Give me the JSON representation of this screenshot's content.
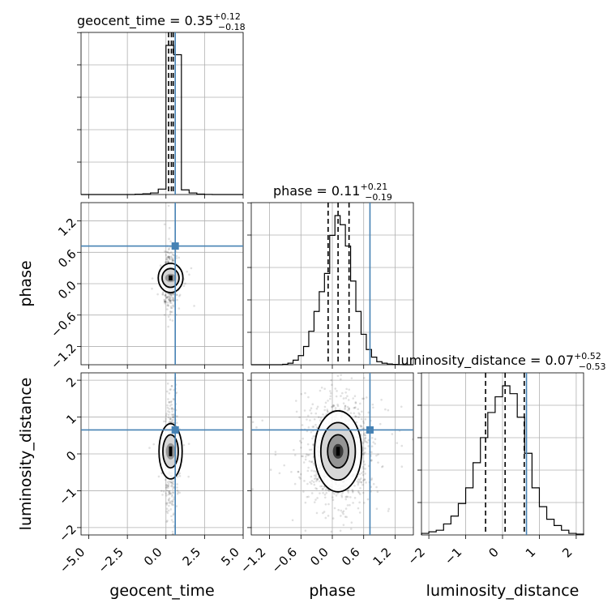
{
  "chart_data": {
    "type": "corner",
    "colors": {
      "truth": "#4682b4",
      "histogram": "#000000",
      "grid": "#b0b0b0"
    },
    "grid": true,
    "parameters": [
      {
        "name": "geocent_time",
        "label": "geocent_time",
        "title_name": "geocent_time = ",
        "median": "0.35",
        "plus": "+0.12",
        "minus": "−0.18",
        "range": [
          -5.5,
          5.0
        ],
        "ticks": [
          -5.0,
          -2.5,
          0.0,
          2.5,
          5.0
        ],
        "tick_labels": [
          "−5.0",
          "−2.5",
          "0.0",
          "2.5",
          "5.0"
        ],
        "truth": 0.6,
        "quantiles": [
          0.17,
          0.35,
          0.47
        ],
        "hist_bins": [
          -5.5,
          -5.0,
          -4.5,
          -4.0,
          -3.5,
          -3.0,
          -2.5,
          -2.0,
          -1.5,
          -1.0,
          -0.5,
          0.0,
          0.5,
          1.0,
          1.5,
          2.0,
          2.5,
          3.0,
          3.5,
          4.0,
          4.5,
          5.0
        ],
        "hist_values": [
          0,
          0,
          0,
          0,
          0,
          0,
          0,
          0.2,
          0.5,
          1.0,
          3.5,
          96,
          90,
          3.0,
          1.0,
          0.3,
          0.1,
          0,
          0,
          0,
          0
        ]
      },
      {
        "name": "phase",
        "label": "phase",
        "title_name": "phase = ",
        "median": "0.11",
        "plus": "+0.21",
        "minus": "−0.19",
        "range": [
          -1.55,
          1.55
        ],
        "ticks": [
          -1.2,
          -0.6,
          0.0,
          0.6,
          1.2
        ],
        "tick_labels": [
          "−1.2",
          "−0.6",
          "0.0",
          "0.6",
          "1.2"
        ],
        "truth": 0.72,
        "quantiles": [
          -0.08,
          0.11,
          0.32
        ],
        "hist_bins": [
          -1.55,
          -1.45,
          -1.35,
          -1.25,
          -1.15,
          -1.05,
          -0.95,
          -0.85,
          -0.75,
          -0.65,
          -0.55,
          -0.45,
          -0.35,
          -0.25,
          -0.15,
          -0.05,
          0.05,
          0.15,
          0.25,
          0.35,
          0.45,
          0.55,
          0.65,
          0.75,
          0.85,
          0.95,
          1.05,
          1.15,
          1.25,
          1.35,
          1.45,
          1.55
        ],
        "hist_values": [
          0,
          0,
          0,
          0,
          0,
          0,
          0.3,
          1,
          3,
          6,
          12,
          22,
          35,
          48,
          60,
          85,
          98,
          92,
          78,
          55,
          35,
          20,
          10,
          5,
          2,
          1,
          0.5,
          0.2,
          0.1,
          0,
          0
        ]
      },
      {
        "name": "luminosity_distance",
        "label": "luminosity_distance",
        "title_name": "luminosity_distance = ",
        "median": "0.07",
        "plus": "+0.52",
        "minus": "−0.53",
        "range": [
          -2.2,
          2.2
        ],
        "ticks": [
          -2,
          -1,
          0,
          1,
          2
        ],
        "tick_labels": [
          "−2",
          "−1",
          "0",
          "1",
          "2"
        ],
        "truth": 0.65,
        "quantiles": [
          -0.46,
          0.07,
          0.59
        ],
        "hist_bins": [
          -2.2,
          -2.0,
          -1.8,
          -1.6,
          -1.4,
          -1.2,
          -1.0,
          -0.8,
          -0.6,
          -0.4,
          -0.2,
          0.0,
          0.2,
          0.4,
          0.6,
          0.8,
          1.0,
          1.2,
          1.4,
          1.6,
          1.8,
          2.0,
          2.2
        ],
        "hist_values": [
          1,
          2,
          3,
          7,
          12,
          20,
          30,
          46,
          62,
          78,
          88,
          95,
          90,
          75,
          52,
          30,
          18,
          10,
          6,
          3,
          1,
          0.5
        ]
      }
    ],
    "pairs": [
      {
        "x": "geocent_time",
        "y": "phase",
        "sx": 0.22,
        "sy": 0.28,
        "cx": 0.3,
        "cy": 0.11,
        "n": 450,
        "seed": 11,
        "contours": [
          [
            0.35,
            0.08
          ],
          [
            0.55,
            0.18
          ],
          [
            0.8,
            0.28
          ]
        ]
      },
      {
        "x": "geocent_time",
        "y": "luminosity_distance",
        "sx": 0.22,
        "sy": 0.75,
        "cx": 0.3,
        "cy": 0.07,
        "n": 450,
        "seed": 23,
        "contours": [
          [
            0.3,
            0.22
          ],
          [
            0.5,
            0.45
          ],
          [
            0.75,
            0.75
          ]
        ]
      },
      {
        "x": "phase",
        "y": "luminosity_distance",
        "sx": 0.28,
        "sy": 0.7,
        "cx": 0.11,
        "cy": 0.07,
        "n": 1200,
        "seed": 37,
        "contours": [
          [
            0.1,
            0.2
          ],
          [
            0.2,
            0.45
          ],
          [
            0.33,
            0.78
          ],
          [
            0.45,
            1.1
          ]
        ]
      }
    ]
  }
}
